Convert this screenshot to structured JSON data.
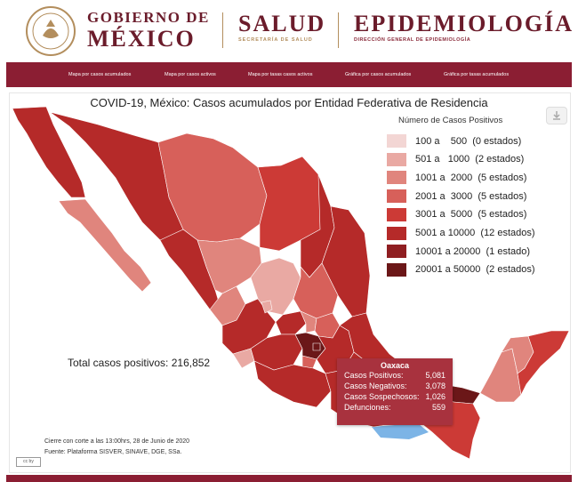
{
  "header": {
    "gobierno_line1": "GOBIERNO DE",
    "gobierno_line2": "MÉXICO",
    "salud": "SALUD",
    "salud_sub": "SECRETARÍA DE SALUD",
    "epi": "EPIDEMIOLOGÍA",
    "epi_sub": "DIRECCIÓN GENERAL DE EPIDEMIOLOGÍA"
  },
  "nav": {
    "items": [
      {
        "label": "Mapa por casos acumulados"
      },
      {
        "label": "Mapa por casos activos"
      },
      {
        "label": "Mapa por tasas casos activos"
      },
      {
        "label": "Gráfica por casos acumulados"
      },
      {
        "label": "Gráfica por tasas acumulados"
      }
    ]
  },
  "map": {
    "title": "COVID-19, México: Casos acumulados por Entidad Federativa de Residencia",
    "legend_title": "Número de Casos Positivos",
    "legend": [
      {
        "label": "100 a    500  (0 estados)",
        "color": "#f3d6d4"
      },
      {
        "label": "501 a   1000  (2 estados)",
        "color": "#e9a9a3"
      },
      {
        "label": "1001 a  2000  (5 estados)",
        "color": "#e0857d"
      },
      {
        "label": "2001 a  3000  (5 estados)",
        "color": "#d7605a"
      },
      {
        "label": "3001 a  5000  (5 estados)",
        "color": "#cc3a36"
      },
      {
        "label": "5001 a 10000  (12 estados)",
        "color": "#b52a29"
      },
      {
        "label": "10001 a 20000  (1 estado)",
        "color": "#8f1e21"
      },
      {
        "label": "20001 a 50000  (2 estados)",
        "color": "#6b1718"
      }
    ],
    "total": "Total casos positivos: 216,852",
    "footer_line1": "Cierre con corte a las 13:00hrs, 28 de Junio de 2020",
    "footer_line2": "Fuente: Plataforma SISVER, SINAVE, DGE, SSa.",
    "cc_badge": "cc by"
  },
  "tooltip": {
    "title": "Oaxaca",
    "rows": [
      {
        "label": "Casos Positivos:",
        "value": "5,081"
      },
      {
        "label": "Casos Negativos:",
        "value": "3,078"
      },
      {
        "label": "Casos Sospechosos:",
        "value": "1,026"
      },
      {
        "label": "Defunciones:",
        "value": "559"
      }
    ]
  },
  "colors": {
    "brand": "#6b1c2b",
    "nav": "#8b1e33",
    "gold": "#b38e5d",
    "tooltip_bg": "#a8323e",
    "ocean_highlight": "#7cb4e6"
  },
  "icons": [
    "seal-icon",
    "download-icon"
  ]
}
